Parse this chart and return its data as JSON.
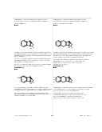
{
  "background_color": "#ffffff",
  "header_left": "U.S. 2014/0256705 A1",
  "header_center": "131",
  "header_right": "Sep. 16, 2014",
  "left_col_title": "Compound 11 - 3-(dihydrobenzo[d]oxazol-2(3H)-\nylidene)-1-methylpyrrolidin-2-one and preparation\nthereof - Example 3 - Table 1 (FORMULA I)",
  "right_col_title": "Compound 13 - 3-(dihydrobenzo[d]oxazol-2(3H)-\nylidene)-1-methylpyrrolidin-2-one and preparation\nthereof - Example 3 (FORMULA I)\nand product thereof.",
  "draw_label": "DRAW",
  "compound12_label": "Compound 12",
  "compound13_label": "Compound 13",
  "page_bg": "#f8f8f8"
}
